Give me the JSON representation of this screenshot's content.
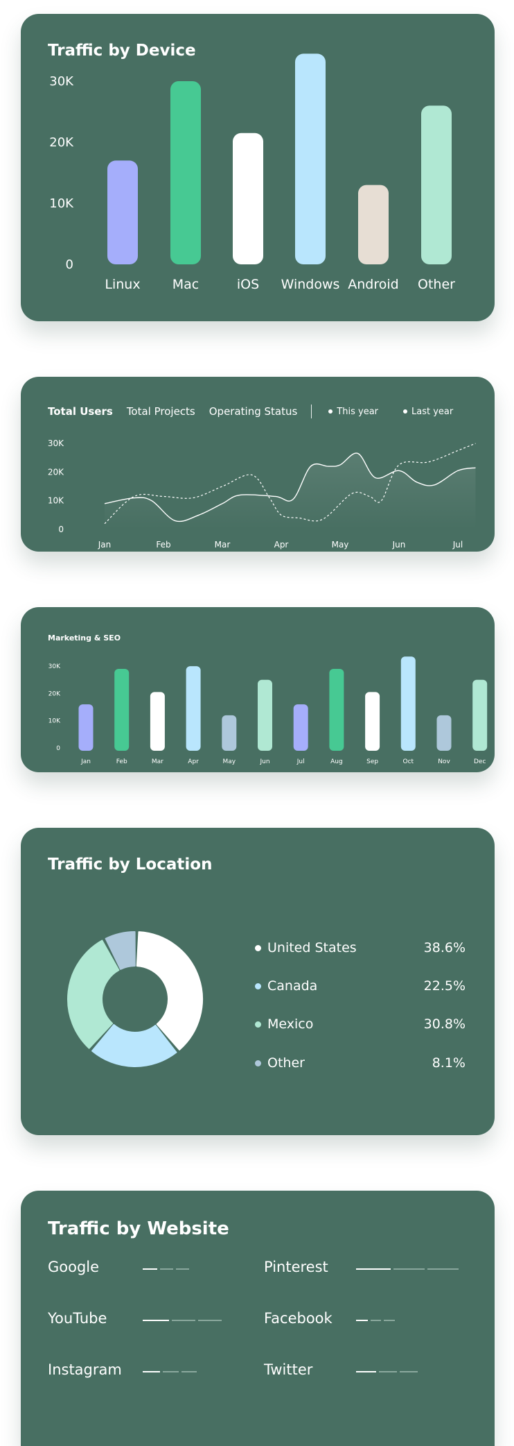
{
  "device_card": {
    "title": "Traffic by Device"
  },
  "users_card": {
    "tabs": [
      "Total Users",
      "Total Projects",
      "Operating Status"
    ],
    "legend": [
      "This year",
      "Last year"
    ]
  },
  "seo_card": {
    "title": "Marketing & SEO"
  },
  "location_card": {
    "title": "Traffic by Location"
  },
  "website_card": {
    "title": "Traffic by Website"
  },
  "colors": {
    "card_bg": "#486f62",
    "linux": "#a5aefb",
    "mac": "#47c993",
    "ios": "#ffffff",
    "windows": "#b9e6fd",
    "android": "#e7ded4",
    "other": "#b0e8d3",
    "nov": "#aec8db"
  },
  "chart_data": [
    {
      "type": "bar",
      "title": "Traffic by Device",
      "categories": [
        "Linux",
        "Mac",
        "iOS",
        "Windows",
        "Android",
        "Other"
      ],
      "values": [
        17000,
        30000,
        21500,
        34500,
        13000,
        26000
      ],
      "yticks": [
        "0",
        "10K",
        "20K",
        "30K"
      ],
      "ylim": [
        0,
        34500
      ],
      "colors": [
        "#a5aefb",
        "#47c993",
        "#ffffff",
        "#b9e6fd",
        "#e7ded4",
        "#b0e8d3"
      ]
    },
    {
      "type": "line",
      "title": "Total Users",
      "x": [
        "Jan",
        "Feb",
        "Mar",
        "Apr",
        "May",
        "Jun",
        "Jul"
      ],
      "yticks": [
        "0",
        "10K",
        "20K",
        "30K"
      ],
      "ylim": [
        0,
        30000
      ],
      "series": [
        {
          "name": "This year",
          "x": [
            0,
            0.5,
            0.8,
            1.2,
            1.6,
            2.0,
            2.3,
            2.9,
            3.2,
            3.5,
            3.8,
            4.0,
            4.3,
            4.6,
            5.0,
            5.3,
            5.6,
            6.0,
            6.3
          ],
          "y": [
            9000,
            11000,
            10000,
            3000,
            5000,
            9000,
            12000,
            11500,
            10500,
            22000,
            22000,
            22500,
            26500,
            18000,
            20500,
            16500,
            15500,
            20500,
            21500
          ]
        },
        {
          "name": "Last year",
          "x": [
            0,
            0.5,
            1.0,
            1.5,
            2.0,
            2.5,
            2.8,
            3.0,
            3.3,
            3.7,
            4.2,
            4.5,
            4.7,
            5.0,
            5.5,
            6.0,
            6.3
          ],
          "y": [
            2000,
            11500,
            11500,
            11000,
            15000,
            19000,
            11000,
            5000,
            4000,
            3500,
            12500,
            11500,
            10000,
            22500,
            23500,
            27500,
            30000
          ]
        }
      ]
    },
    {
      "type": "bar",
      "title": "Marketing & SEO",
      "categories": [
        "Jan",
        "Feb",
        "Mar",
        "Apr",
        "May",
        "Jun",
        "Jul",
        "Aug",
        "Sep",
        "Oct",
        "Nov",
        "Dec"
      ],
      "values": [
        17000,
        30000,
        21500,
        31000,
        13000,
        26000,
        17000,
        30000,
        21500,
        34500,
        13000,
        26000
      ],
      "yticks": [
        "0",
        "10K",
        "20K",
        "30K"
      ],
      "ylim": [
        0,
        34500
      ],
      "colors": [
        "#a5aefb",
        "#47c993",
        "#ffffff",
        "#b9e6fd",
        "#aec8db",
        "#b0e8d3",
        "#a5aefb",
        "#47c993",
        "#ffffff",
        "#b9e6fd",
        "#aec8db",
        "#b0e8d3"
      ]
    },
    {
      "type": "pie",
      "title": "Traffic by Location",
      "labels": [
        "United States",
        "Canada",
        "Mexico",
        "Other"
      ],
      "values": [
        38.6,
        22.5,
        30.8,
        8.1
      ],
      "display": [
        "38.6%",
        "22.5%",
        "30.8%",
        "8.1%"
      ],
      "colors": [
        "#ffffff",
        "#b9e6fd",
        "#b0e8d3",
        "#aec8db"
      ]
    },
    {
      "type": "bar",
      "title": "Traffic by Website",
      "categories": [
        "Google",
        "YouTube",
        "Instagram",
        "Pinterest",
        "Facebook",
        "Twitter"
      ],
      "filled_segments": [
        1,
        1,
        1,
        1,
        1,
        1
      ],
      "segments_shown": [
        3,
        3,
        3,
        3,
        3,
        3
      ],
      "relative_length": [
        0.25,
        0.45,
        0.3,
        0.6,
        0.2,
        0.35
      ]
    }
  ]
}
